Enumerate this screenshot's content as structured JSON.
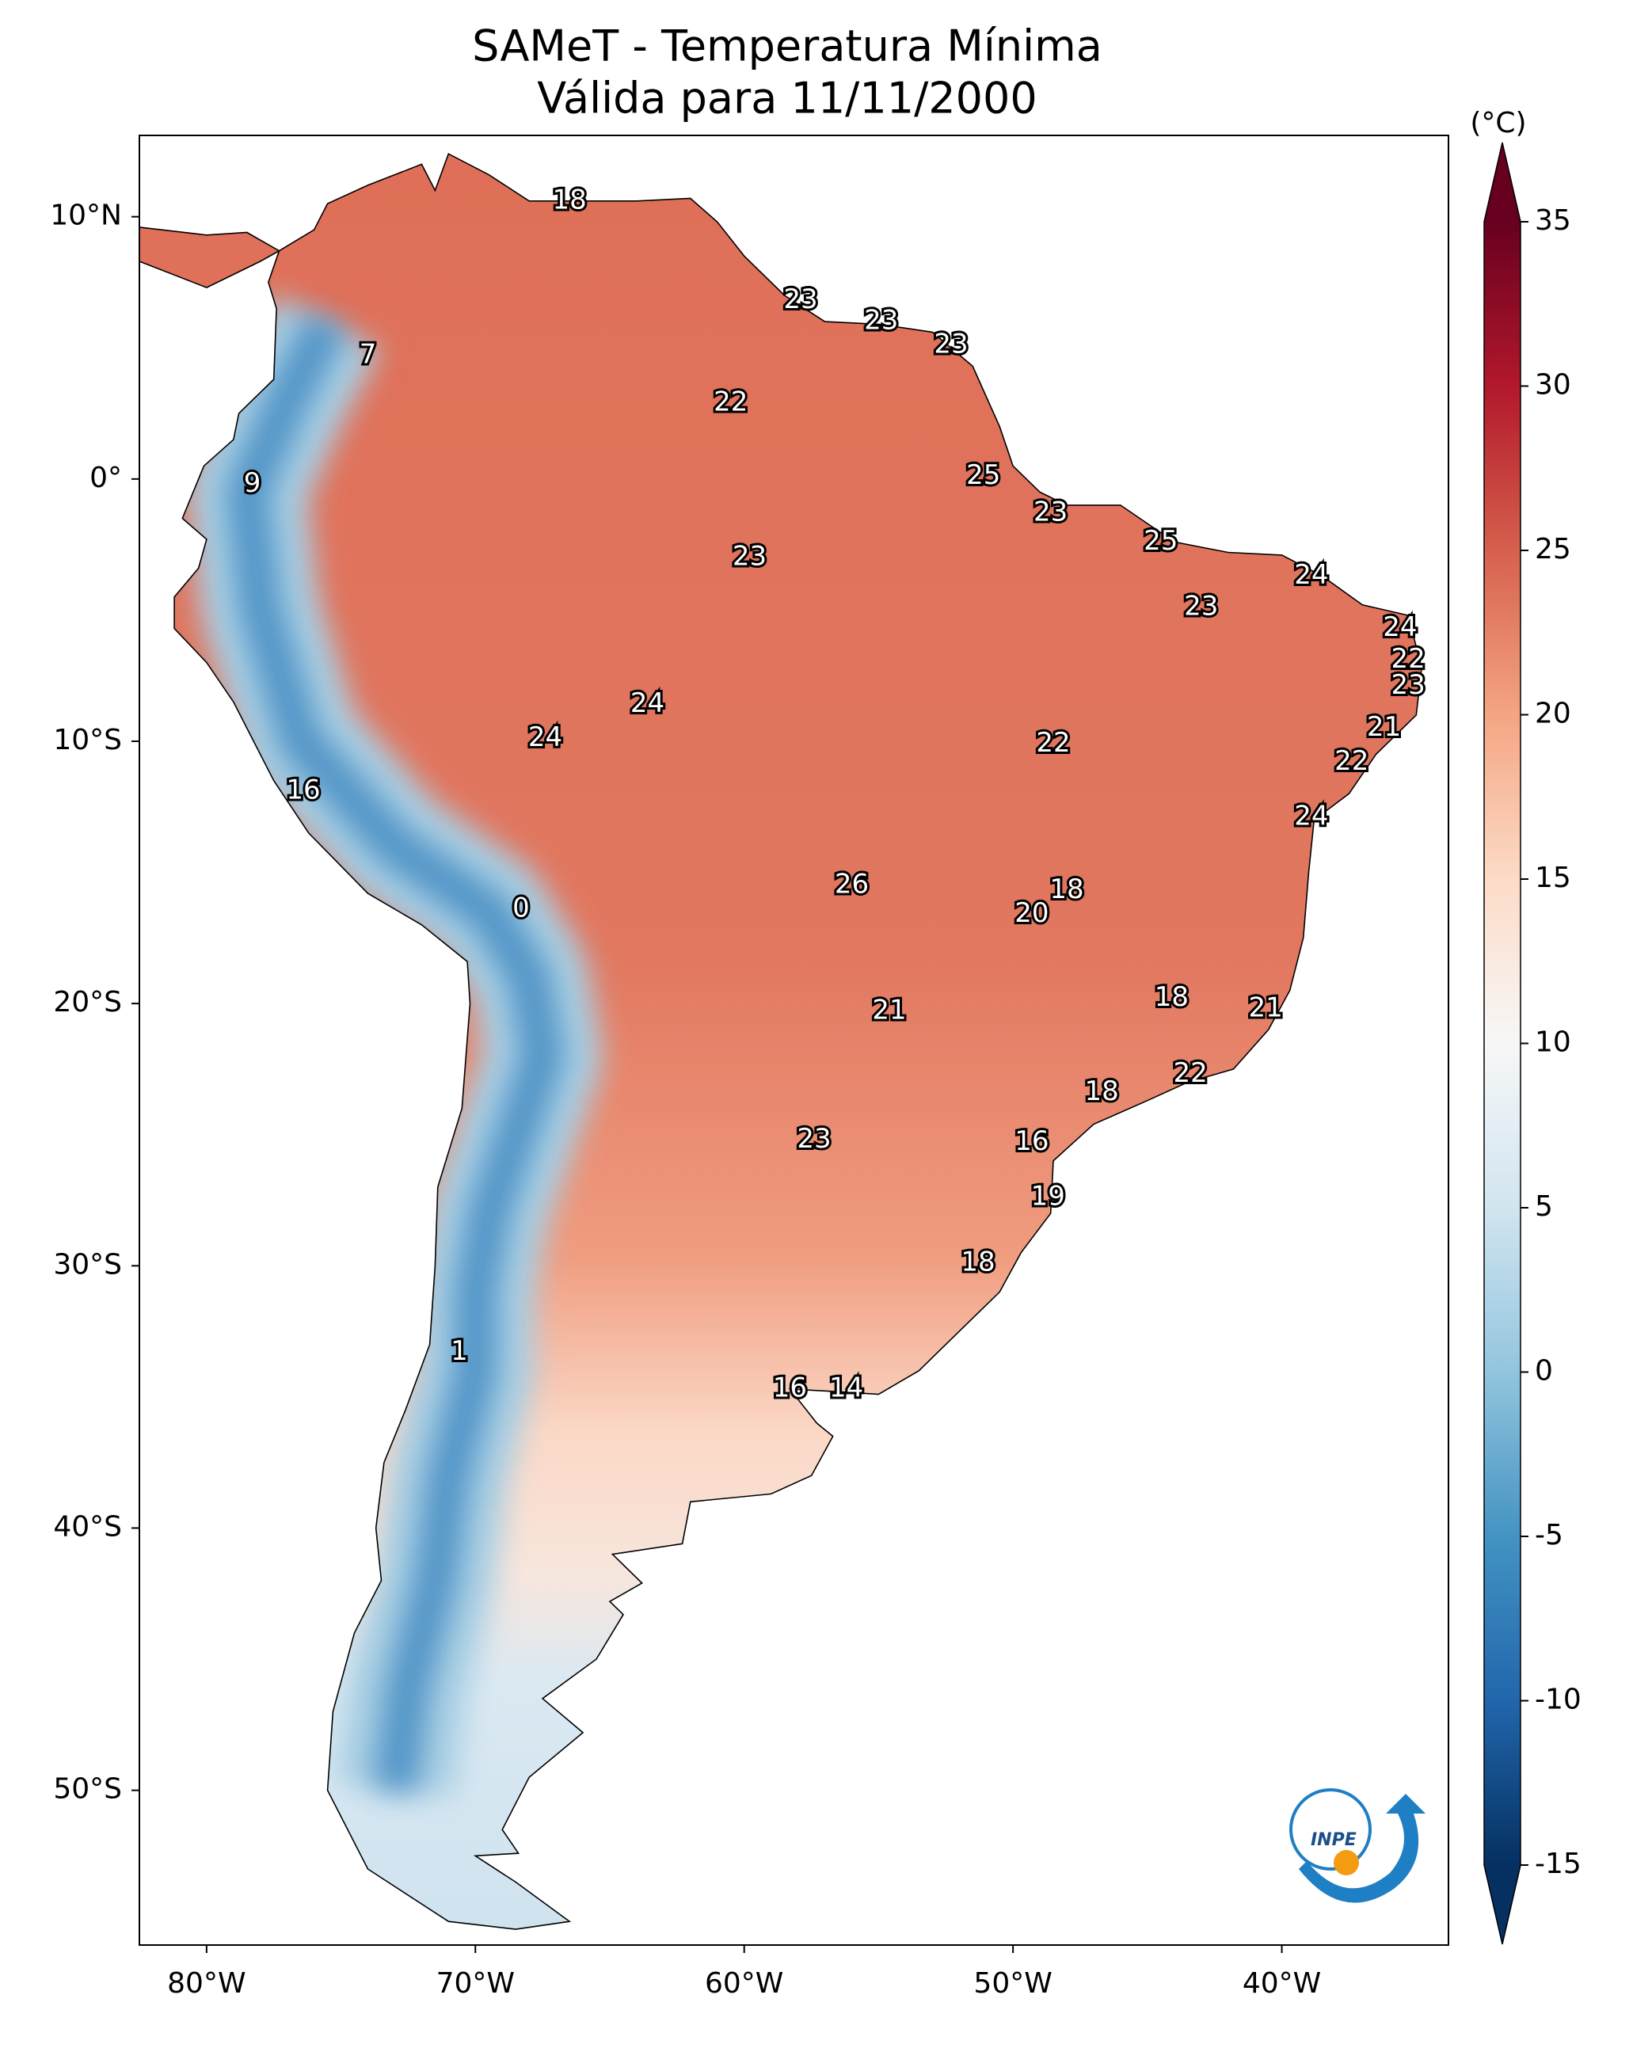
{
  "chart_data": {
    "type": "map",
    "title": "SAMeT - Temperatura Mínima",
    "subtitle": "Válida para 11/11/2000",
    "colorbar_label": "(°C)",
    "colormap": "RdBu_r",
    "clim": [
      -15,
      35
    ],
    "cticks": [
      35,
      30,
      25,
      20,
      15,
      10,
      5,
      0,
      -5,
      -10,
      -15
    ],
    "xlim": [
      -82.5,
      -33.8
    ],
    "ylim": [
      -55.9,
      13.1
    ],
    "xticks": [
      {
        "value": -80,
        "label": "80°W"
      },
      {
        "value": -70,
        "label": "70°W"
      },
      {
        "value": -60,
        "label": "60°W"
      },
      {
        "value": -50,
        "label": "50°W"
      },
      {
        "value": -40,
        "label": "40°W"
      }
    ],
    "yticks": [
      {
        "value": 10,
        "label": "10°N"
      },
      {
        "value": 0,
        "label": "0°"
      },
      {
        "value": -10,
        "label": "10°S"
      },
      {
        "value": -20,
        "label": "20°S"
      },
      {
        "value": -30,
        "label": "30°S"
      },
      {
        "value": -40,
        "label": "40°S"
      },
      {
        "value": -50,
        "label": "50°S"
      }
    ],
    "logo_text": "INPE",
    "stations": {
      "lon": [
        -66.5,
        -57.9,
        -54.9,
        -52.3,
        -74.0,
        -60.5,
        -78.3,
        -51.1,
        -48.6,
        -59.8,
        -44.5,
        -38.9,
        -43.0,
        -35.6,
        -35.3,
        -35.3,
        -63.6,
        -67.4,
        -48.5,
        -36.2,
        -37.4,
        -76.4,
        -38.9,
        -56.0,
        -48.0,
        -49.3,
        -68.3,
        -44.1,
        -40.6,
        -54.6,
        -43.4,
        -46.7,
        -49.3,
        -57.4,
        -48.7,
        -51.3,
        -70.6,
        -58.3,
        -56.2
      ],
      "lat": [
        10.6,
        6.8,
        6.0,
        5.1,
        4.7,
        2.9,
        -0.2,
        0.1,
        -1.3,
        -3.0,
        -2.4,
        -3.7,
        -4.9,
        -5.7,
        -6.9,
        -7.9,
        -8.6,
        -9.9,
        -10.1,
        -9.5,
        -10.8,
        -11.9,
        -12.9,
        -15.5,
        -15.7,
        -16.6,
        -16.4,
        -19.8,
        -20.2,
        -20.3,
        -22.7,
        -23.4,
        -25.3,
        -25.2,
        -27.4,
        -29.9,
        -33.3,
        -34.7,
        -34.7
      ],
      "values": [
        18,
        23,
        23,
        23,
        7,
        22,
        9,
        25,
        23,
        23,
        25,
        24,
        23,
        24,
        22,
        23,
        24,
        24,
        22,
        21,
        22,
        16,
        24,
        26,
        18,
        20,
        0,
        18,
        21,
        21,
        22,
        18,
        16,
        23,
        19,
        18,
        1,
        16,
        14
      ]
    }
  }
}
